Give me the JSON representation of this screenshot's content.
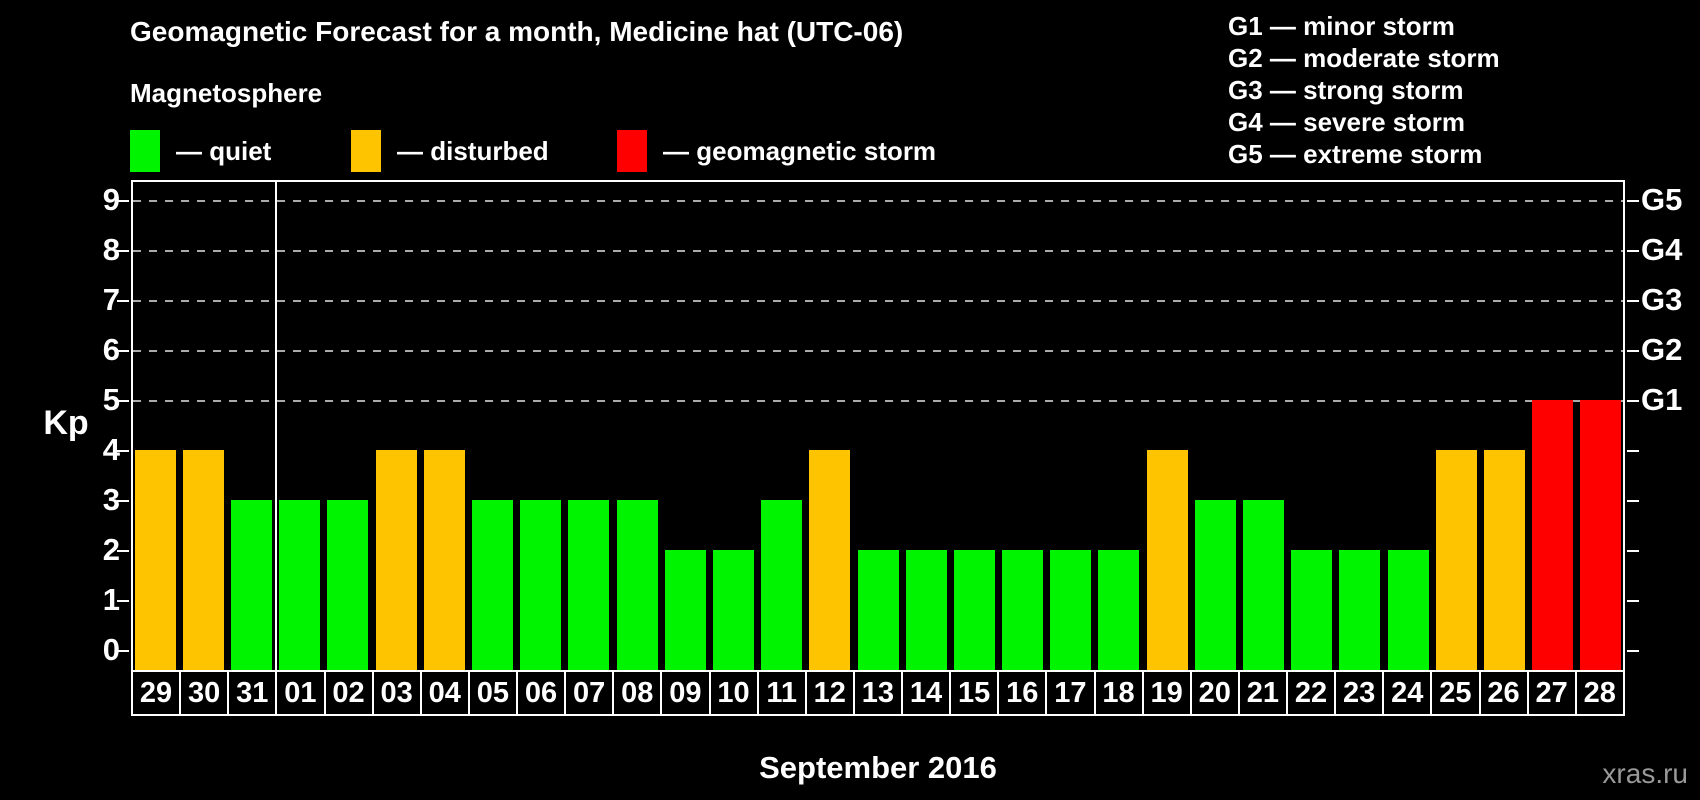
{
  "header": {
    "title": "Geomagnetic Forecast for a month, Medicine hat (UTC-06)",
    "subtitle": "Magnetosphere"
  },
  "legend": {
    "items": [
      {
        "status": "quiet",
        "label": "— quiet",
        "color": "#00f400",
        "x": 130
      },
      {
        "status": "disturbed",
        "label": "— disturbed",
        "color": "#ffc400",
        "x": 351
      },
      {
        "status": "storm",
        "label": "— geomagnetic storm",
        "color": "#ff0000",
        "x": 617
      }
    ]
  },
  "storm_scale_legend": {
    "items": [
      "G1 — minor storm",
      "G2 — moderate storm",
      "G3 — strong storm",
      "G4 — severe storm",
      "G5 — extreme storm"
    ]
  },
  "chart_data": {
    "type": "bar",
    "title": "Geomagnetic Forecast for a month, Medicine hat (UTC-06)",
    "ylabel": "Kp",
    "xlabel": "September 2016",
    "ylim": [
      0,
      9.6
    ],
    "yticks": [
      0,
      1,
      2,
      3,
      4,
      5,
      6,
      7,
      8,
      9
    ],
    "gridlines_at": [
      5,
      6,
      7,
      8,
      9
    ],
    "grid": "dashed horizontal at Kp 5-9",
    "legend_position": "top",
    "right_axis_labels": [
      {
        "kp": 5,
        "label": "G1"
      },
      {
        "kp": 6,
        "label": "G2"
      },
      {
        "kp": 7,
        "label": "G3"
      },
      {
        "kp": 8,
        "label": "G4"
      },
      {
        "kp": 9,
        "label": "G5"
      }
    ],
    "categories": [
      "29",
      "30",
      "31",
      "01",
      "02",
      "03",
      "04",
      "05",
      "06",
      "07",
      "08",
      "09",
      "10",
      "11",
      "12",
      "13",
      "14",
      "15",
      "16",
      "17",
      "18",
      "19",
      "20",
      "21",
      "22",
      "23",
      "24",
      "25",
      "26",
      "27",
      "28"
    ],
    "values": [
      4,
      4,
      3,
      3,
      3,
      4,
      4,
      3,
      3,
      3,
      3,
      2,
      2,
      3,
      4,
      2,
      2,
      2,
      2,
      2,
      2,
      4,
      3,
      3,
      2,
      2,
      2,
      4,
      4,
      5,
      5
    ],
    "statuses": [
      "disturbed",
      "disturbed",
      "quiet",
      "quiet",
      "quiet",
      "disturbed",
      "disturbed",
      "quiet",
      "quiet",
      "quiet",
      "quiet",
      "quiet",
      "quiet",
      "quiet",
      "disturbed",
      "quiet",
      "quiet",
      "quiet",
      "quiet",
      "quiet",
      "quiet",
      "disturbed",
      "quiet",
      "quiet",
      "quiet",
      "quiet",
      "quiet",
      "disturbed",
      "disturbed",
      "storm",
      "storm"
    ],
    "separator_after_index": 2
  },
  "footer": {
    "month_label": "September 2016",
    "watermark": "xras.ru"
  },
  "colors": {
    "background": "#000000",
    "text": "#ffffff",
    "frame": "#ffffff",
    "gridline": "#ababab",
    "quiet": "#00f400",
    "disturbed": "#ffc400",
    "storm": "#ff0000",
    "watermark": "#999999"
  }
}
